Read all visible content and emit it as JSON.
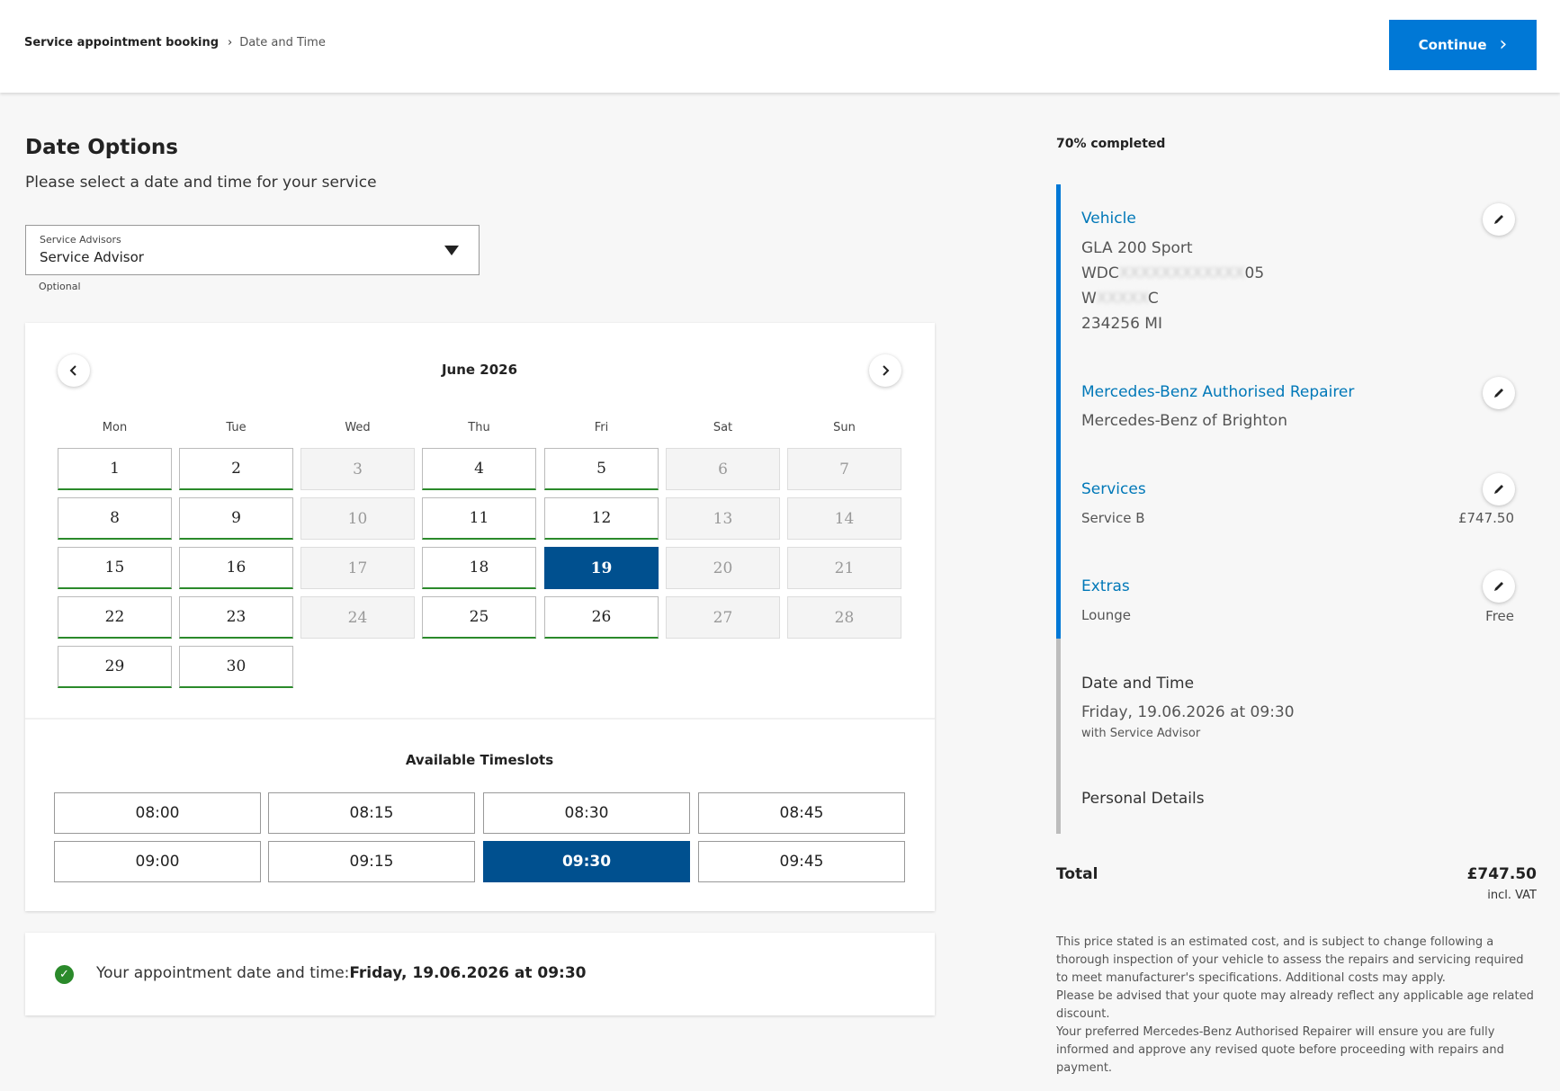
{
  "breadcrumb": {
    "root": "Service appointment booking",
    "current": "Date and Time"
  },
  "header": {
    "continue_label": "Continue"
  },
  "date_options": {
    "title": "Date Options",
    "subtitle": "Please select a date and time for your service",
    "advisor_select": {
      "label": "Service Advisors",
      "value": "Service Advisor",
      "helper": "Optional"
    }
  },
  "calendar": {
    "month_label": "June 2026",
    "weekdays": [
      "Mon",
      "Tue",
      "Wed",
      "Thu",
      "Fri",
      "Sat",
      "Sun"
    ],
    "first_weekday_index": 0,
    "days": [
      {
        "d": "1",
        "state": "available"
      },
      {
        "d": "2",
        "state": "available"
      },
      {
        "d": "3",
        "state": "unavailable"
      },
      {
        "d": "4",
        "state": "available"
      },
      {
        "d": "5",
        "state": "available"
      },
      {
        "d": "6",
        "state": "unavailable"
      },
      {
        "d": "7",
        "state": "unavailable"
      },
      {
        "d": "8",
        "state": "available"
      },
      {
        "d": "9",
        "state": "available"
      },
      {
        "d": "10",
        "state": "unavailable"
      },
      {
        "d": "11",
        "state": "available"
      },
      {
        "d": "12",
        "state": "available"
      },
      {
        "d": "13",
        "state": "unavailable"
      },
      {
        "d": "14",
        "state": "unavailable"
      },
      {
        "d": "15",
        "state": "available"
      },
      {
        "d": "16",
        "state": "available"
      },
      {
        "d": "17",
        "state": "unavailable"
      },
      {
        "d": "18",
        "state": "available"
      },
      {
        "d": "19",
        "state": "selected"
      },
      {
        "d": "20",
        "state": "unavailable"
      },
      {
        "d": "21",
        "state": "unavailable"
      },
      {
        "d": "22",
        "state": "available"
      },
      {
        "d": "23",
        "state": "available"
      },
      {
        "d": "24",
        "state": "unavailable"
      },
      {
        "d": "25",
        "state": "available"
      },
      {
        "d": "26",
        "state": "available"
      },
      {
        "d": "27",
        "state": "unavailable"
      },
      {
        "d": "28",
        "state": "unavailable"
      },
      {
        "d": "29",
        "state": "available"
      },
      {
        "d": "30",
        "state": "available"
      }
    ]
  },
  "timeslots": {
    "title": "Available Timeslots",
    "slots": [
      {
        "time": "08:00",
        "selected": false
      },
      {
        "time": "08:15",
        "selected": false
      },
      {
        "time": "08:30",
        "selected": false
      },
      {
        "time": "08:45",
        "selected": false
      },
      {
        "time": "09:00",
        "selected": false
      },
      {
        "time": "09:15",
        "selected": false
      },
      {
        "time": "09:30",
        "selected": true
      },
      {
        "time": "09:45",
        "selected": false
      }
    ]
  },
  "confirmation": {
    "prefix": "Your appointment date and time:",
    "value": "Friday, 19.06.2026 at 09:30"
  },
  "summary": {
    "progress_label": "70% completed",
    "progress_fraction": 0.7,
    "vehicle": {
      "title": "Vehicle",
      "model": "GLA 200 Sport",
      "vin_start": "WDC",
      "vin_masked": "XXXXXXXXXXXX",
      "vin_end": "05",
      "reg_start": "W",
      "reg_masked": "XXXXX",
      "reg_end": "C",
      "mileage": "234256 MI"
    },
    "repairer": {
      "title": "Mercedes-Benz Authorised Repairer",
      "name": "Mercedes-Benz of Brighton"
    },
    "services": {
      "title": "Services",
      "item": "Service B",
      "price": "£747.50"
    },
    "extras": {
      "title": "Extras",
      "item": "Lounge",
      "price": "Free"
    },
    "date_time": {
      "title": "Date and Time",
      "value": "Friday, 19.06.2026 at 09:30",
      "advisor": "with Service Advisor"
    },
    "personal": {
      "title": "Personal Details"
    },
    "total_label": "Total",
    "total_value": "£747.50",
    "vat_note": "incl. VAT",
    "disclaimer": [
      "This price stated is an estimated cost, and is subject to change following a thorough inspection of your vehicle to assess the repairs and servicing required to meet manufacturer's specifications. Additional costs may apply.",
      "Please be advised that your quote may already reflect any applicable age related discount.",
      "Your preferred Mercedes-Benz Authorised Repairer will ensure you are fully informed and approve any revised quote before proceeding with repairs and payment."
    ]
  },
  "colors": {
    "brand_blue": "#0078d6",
    "selected_navy": "#00508f",
    "available_green": "#2b8a2b",
    "link_blue": "#0078b8"
  },
  "icons": {
    "breadcrumb_separator": "chevron-right-icon",
    "continue": "chevron-right-icon",
    "prev_month": "chevron-left-icon",
    "next_month": "chevron-right-icon",
    "dropdown": "caret-down-icon",
    "edit": "pencil-icon",
    "confirmation": "check-circle-icon"
  }
}
